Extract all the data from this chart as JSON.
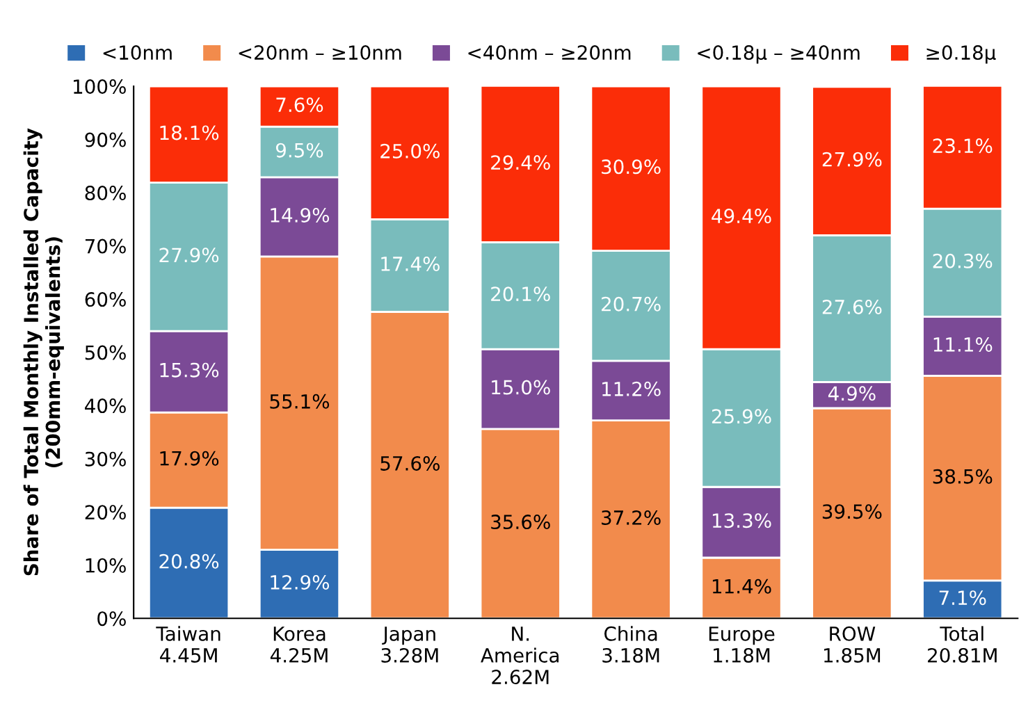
{
  "chart_data": {
    "type": "bar",
    "stacked": true,
    "ylabel": "Share of Total Monthly Installed Capacity\n(200mm-equivalents)",
    "categories": [
      "Taiwan\n4.45M",
      "Korea\n4.25M",
      "Japan\n3.28M",
      "N.\nAmerica\n2.62M",
      "China\n3.18M",
      "Europe\n1.18M",
      "ROW\n1.85M",
      "Total\n20.81M"
    ],
    "series": [
      {
        "name": "<10nm",
        "color": "#2e6db4",
        "values": [
          20.8,
          12.9,
          0,
          0,
          0,
          0,
          0,
          7.1
        ],
        "value_labels": [
          "20.8%",
          "12.9%",
          null,
          null,
          null,
          null,
          null,
          "7.1%"
        ]
      },
      {
        "name": "<20nm – ≥10nm",
        "color": "#f28b4c",
        "values": [
          17.9,
          55.1,
          57.6,
          35.6,
          37.2,
          11.4,
          39.5,
          38.5
        ],
        "value_labels": [
          "17.9%",
          "55.1%",
          "57.6%",
          "35.6%",
          "37.2%",
          "11.4%",
          "39.5%",
          "38.5%"
        ]
      },
      {
        "name": "<40nm – ≥20nm",
        "color": "#7b4a96",
        "values": [
          15.3,
          14.9,
          0,
          15.0,
          11.2,
          13.3,
          4.9,
          11.1
        ],
        "value_labels": [
          "15.3%",
          "14.9%",
          null,
          "15.0%",
          "11.2%",
          "13.3%",
          "4.9%",
          "11.1%"
        ]
      },
      {
        "name": "<0.18µ – ≥40nm",
        "color": "#79bcbc",
        "values": [
          27.9,
          9.5,
          17.4,
          20.1,
          20.7,
          25.9,
          27.6,
          20.3
        ],
        "value_labels": [
          "27.9%",
          "9.5%",
          "17.4%",
          "20.1%",
          "20.7%",
          "25.9%",
          "27.6%",
          "20.3%"
        ]
      },
      {
        "name": "≥0.18µ",
        "color": "#fb2d08",
        "values": [
          18.1,
          7.6,
          25.0,
          29.4,
          30.9,
          49.4,
          27.9,
          23.1
        ],
        "value_labels": [
          "18.1%",
          "7.6%",
          "25.0%",
          "29.4%",
          "30.9%",
          "49.4%",
          "27.9%",
          "23.1%"
        ]
      }
    ],
    "ylim": [
      0,
      100
    ],
    "yticks": [
      {
        "value": 0,
        "label": "0%"
      },
      {
        "value": 10,
        "label": "10%"
      },
      {
        "value": 20,
        "label": "20%"
      },
      {
        "value": 30,
        "label": "30%"
      },
      {
        "value": 40,
        "label": "40%"
      },
      {
        "value": 50,
        "label": "50%"
      },
      {
        "value": 60,
        "label": "60%"
      },
      {
        "value": 70,
        "label": "70%"
      },
      {
        "value": 80,
        "label": "80%"
      },
      {
        "value": 90,
        "label": "90%"
      },
      {
        "value": 100,
        "label": "100%"
      }
    ],
    "legend": "top"
  }
}
